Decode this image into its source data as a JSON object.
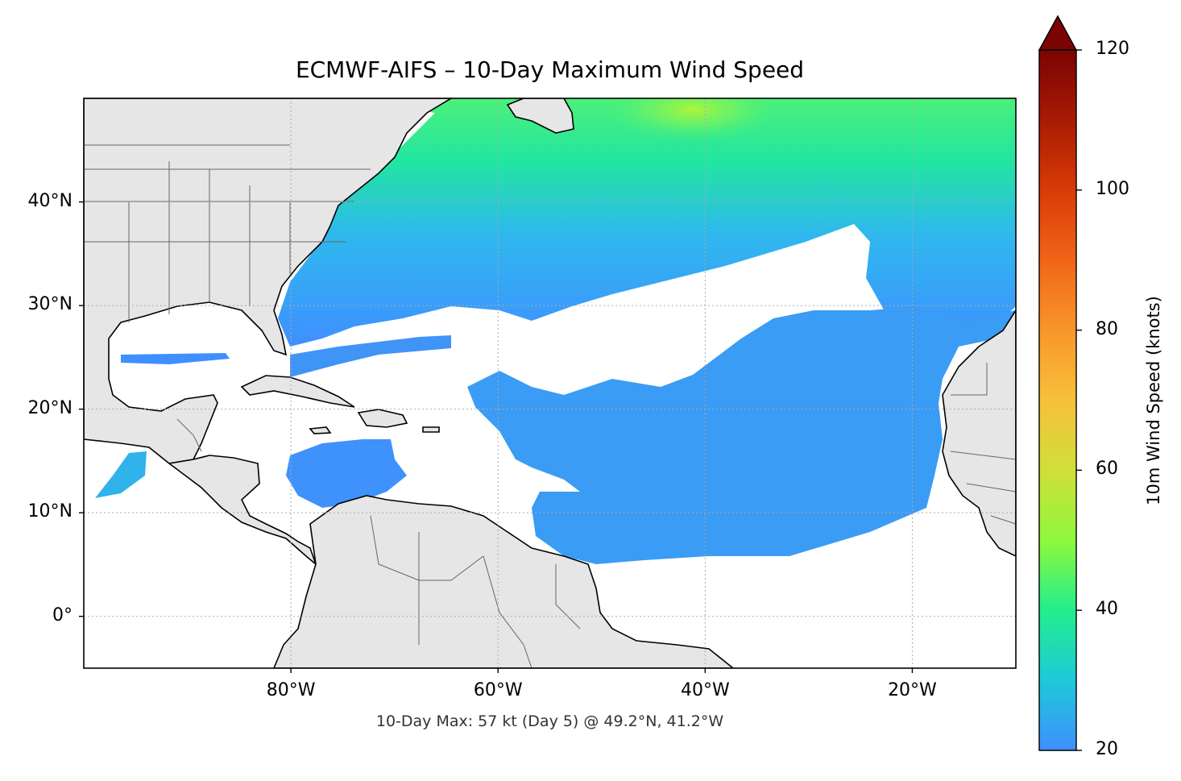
{
  "title": "ECMWF-AIFS – 10-Day Maximum Wind Speed",
  "subtitle": "10-Day Max: 57 kt (Day 5) @ 49.2°N, 41.2°W",
  "map": {
    "projection": "PlateCarree",
    "lon_range": [
      -100,
      -10
    ],
    "lat_range": [
      -5,
      50
    ],
    "lat_ticks": [
      {
        "value": 40,
        "label": "40°N"
      },
      {
        "value": 30,
        "label": "30°N"
      },
      {
        "value": 20,
        "label": "20°N"
      },
      {
        "value": 10,
        "label": "10°N"
      },
      {
        "value": 0,
        "label": "0°"
      }
    ],
    "lon_ticks": [
      {
        "value": -80,
        "label": "80°W"
      },
      {
        "value": -60,
        "label": "60°W"
      },
      {
        "value": -40,
        "label": "40°W"
      },
      {
        "value": -20,
        "label": "20°W"
      }
    ],
    "gridlines": true,
    "land_color": "#e6e6e6",
    "max_point": {
      "lat": 49.2,
      "lon": -41.2,
      "value_kt": 57,
      "day": 5
    }
  },
  "colorbar": {
    "label": "10m Wind Speed (knots)",
    "min": 20,
    "max": 120,
    "extend": "max",
    "ticks": [
      {
        "value": 120,
        "label": "120"
      },
      {
        "value": 100,
        "label": "100"
      },
      {
        "value": 80,
        "label": "80"
      },
      {
        "value": 60,
        "label": "60"
      },
      {
        "value": 40,
        "label": "40"
      },
      {
        "value": 20,
        "label": "20"
      }
    ],
    "colormap": "turbo",
    "stops": [
      {
        "value": 20,
        "color": "#3f8fff"
      },
      {
        "value": 30,
        "color": "#1ec9d8"
      },
      {
        "value": 40,
        "color": "#22ee8c"
      },
      {
        "value": 50,
        "color": "#8ef83c"
      },
      {
        "value": 60,
        "color": "#d0df3a"
      },
      {
        "value": 70,
        "color": "#f7c03a"
      },
      {
        "value": 80,
        "color": "#f8962a"
      },
      {
        "value": 90,
        "color": "#f06518"
      },
      {
        "value": 100,
        "color": "#d83b08"
      },
      {
        "value": 110,
        "color": "#a81b03"
      },
      {
        "value": 120,
        "color": "#7a0403"
      }
    ]
  }
}
